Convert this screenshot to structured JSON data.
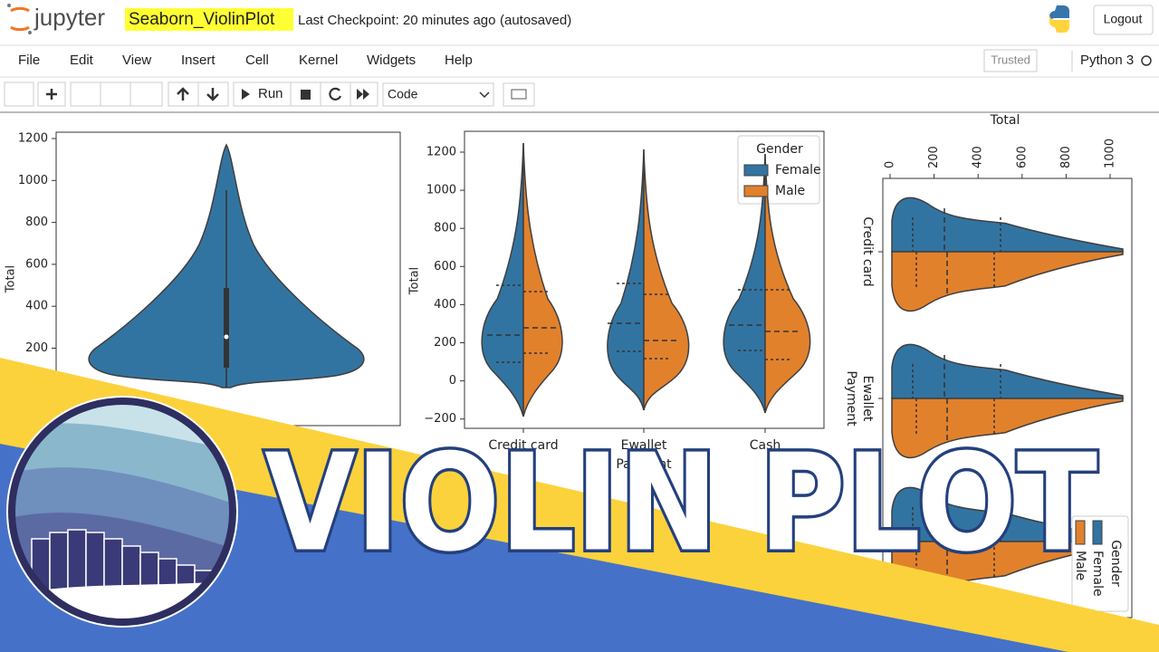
{
  "header": {
    "logo": "jupyter",
    "notebook_name": "Seaborn_ViolinPlot",
    "checkpoint": "Last Checkpoint: 20 minutes ago",
    "autosave": "(autosaved)",
    "logout": "Logout"
  },
  "menu": [
    "File",
    "Edit",
    "View",
    "Insert",
    "Cell",
    "Kernel",
    "Widgets",
    "Help"
  ],
  "trusted": "Trusted",
  "kernel": "Python 3",
  "toolbar": {
    "run": "Run",
    "cell_type": "Code"
  },
  "plot1": {
    "ylabel": "Total",
    "yticks": [
      "1200",
      "1000",
      "800",
      "600",
      "400",
      "200"
    ]
  },
  "plot2": {
    "ylabel": "Total",
    "xlabel": "Payment",
    "yticks": [
      "1200",
      "1000",
      "800",
      "600",
      "400",
      "200",
      "0",
      "−200"
    ],
    "categories": [
      "Credit card",
      "Ewallet",
      "Cash"
    ],
    "legend_title": "Gender",
    "legend": [
      "Female",
      "Male"
    ]
  },
  "plot3": {
    "xlabel": "Total",
    "ylabel": "Payment",
    "xticks": [
      "0",
      "200",
      "400",
      "600",
      "800",
      "1000"
    ],
    "categories": [
      "Credit card",
      "Ewallet"
    ],
    "legend_title": "Gender",
    "legend": [
      "Female",
      "Male"
    ]
  },
  "banner": {
    "title": "VIOLIN PLOT"
  }
}
